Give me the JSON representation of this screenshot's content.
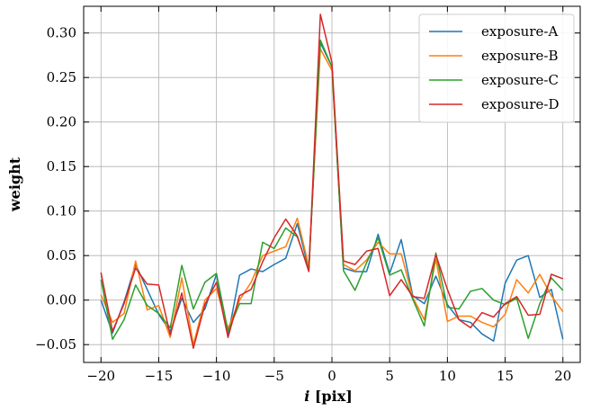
{
  "chart_data": {
    "type": "line",
    "xlabel": "i [pix]",
    "ylabel": "weight",
    "xlim": [
      -21.5,
      21.5
    ],
    "ylim": [
      -0.07,
      0.33
    ],
    "grid": true,
    "legend_position": "top-right",
    "x_ticks": [
      -20,
      -15,
      -10,
      -5,
      0,
      5,
      10,
      15,
      20
    ],
    "x_tick_labels": [
      "−20",
      "−15",
      "−10",
      "−5",
      "0",
      "5",
      "10",
      "15",
      "20"
    ],
    "y_ticks": [
      -0.05,
      0.0,
      0.05,
      0.1,
      0.15,
      0.2,
      0.25,
      0.3
    ],
    "y_tick_labels": [
      "−0.05",
      "0.00",
      "0.05",
      "0.10",
      "0.15",
      "0.20",
      "0.25",
      "0.30"
    ],
    "x": [
      -20,
      -19,
      -18,
      -17,
      -16,
      -15,
      -14,
      -13,
      -12,
      -11,
      -10,
      -9,
      -8,
      -7,
      -6,
      -5,
      -4,
      -3,
      -2,
      -1,
      0,
      1,
      2,
      3,
      4,
      5,
      6,
      7,
      8,
      9,
      10,
      11,
      12,
      13,
      14,
      15,
      16,
      17,
      18,
      19,
      20
    ],
    "series": [
      {
        "name": "exposure-A",
        "color": "#1f77b4",
        "values": [
          0.0,
          -0.037,
          -0.002,
          0.04,
          0.012,
          -0.016,
          -0.035,
          0.002,
          -0.025,
          -0.01,
          0.029,
          -0.04,
          0.028,
          0.035,
          0.032,
          0.04,
          0.047,
          0.086,
          0.035,
          0.289,
          0.262,
          0.036,
          0.032,
          0.032,
          0.074,
          0.03,
          0.068,
          0.005,
          -0.004,
          0.027,
          -0.005,
          -0.022,
          -0.025,
          -0.038,
          -0.046,
          0.019,
          0.045,
          0.05,
          0.003,
          0.012,
          -0.044
        ]
      },
      {
        "name": "exposure-B",
        "color": "#ff7f0e",
        "values": [
          0.006,
          -0.025,
          -0.015,
          0.044,
          -0.011,
          -0.006,
          -0.042,
          0.025,
          -0.05,
          0.0,
          0.013,
          -0.032,
          0.0,
          0.02,
          0.05,
          0.055,
          0.06,
          0.092,
          0.038,
          0.282,
          0.258,
          0.04,
          0.033,
          0.045,
          0.065,
          0.052,
          0.052,
          0.003,
          -0.022,
          0.046,
          -0.024,
          -0.018,
          -0.018,
          -0.025,
          -0.03,
          -0.016,
          0.023,
          0.008,
          0.029,
          0.005,
          -0.013
        ]
      },
      {
        "name": "exposure-C",
        "color": "#2ca02c",
        "values": [
          0.023,
          -0.044,
          -0.022,
          0.017,
          -0.006,
          -0.015,
          -0.031,
          0.039,
          -0.01,
          0.02,
          0.03,
          -0.035,
          -0.004,
          -0.004,
          0.065,
          0.058,
          0.081,
          0.071,
          0.034,
          0.292,
          0.262,
          0.033,
          0.011,
          0.042,
          0.07,
          0.028,
          0.034,
          0.001,
          -0.029,
          0.053,
          -0.008,
          -0.01,
          0.01,
          0.013,
          0.0,
          -0.005,
          0.002,
          -0.043,
          -0.004,
          0.025,
          0.011
        ]
      },
      {
        "name": "exposure-D",
        "color": "#d62728",
        "values": [
          0.031,
          -0.035,
          -0.004,
          0.036,
          0.018,
          0.017,
          -0.039,
          0.008,
          -0.054,
          -0.005,
          0.02,
          -0.042,
          0.005,
          0.012,
          0.043,
          0.07,
          0.091,
          0.072,
          0.032,
          0.321,
          0.267,
          0.044,
          0.04,
          0.055,
          0.058,
          0.005,
          0.023,
          0.004,
          0.002,
          0.051,
          0.012,
          -0.022,
          -0.031,
          -0.014,
          -0.019,
          -0.004,
          0.004,
          -0.017,
          -0.016,
          0.029,
          0.024
        ]
      }
    ]
  }
}
